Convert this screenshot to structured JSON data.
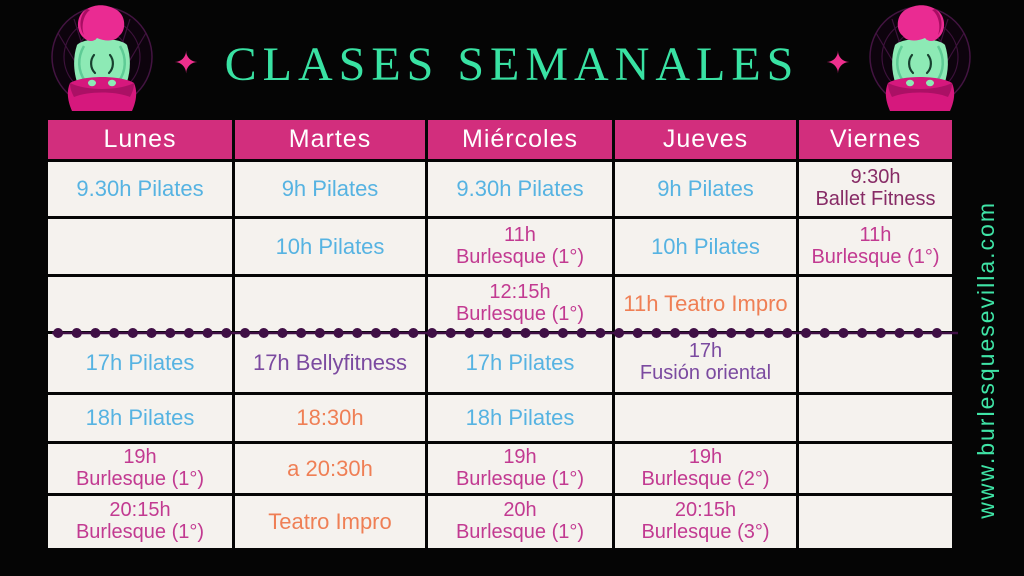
{
  "title": {
    "text": "CLASES SEMANALES",
    "sparkle": "✦"
  },
  "website": "www.burlesquesevilla.com",
  "colors": {
    "background": "#050505",
    "header_pink": "#d22e7d",
    "cell_bg": "#f5f2ee",
    "title_green": "#39e2a3",
    "sparkle_pink": "#ee2f8d",
    "dot_purple": "#3f0f45",
    "blue": "#56b3e2",
    "magenta": "#c23a91",
    "purple": "#7b4aa0",
    "plum": "#872b66",
    "orange": "#ef7f55"
  },
  "icons": {
    "sparkle_icon": "✦",
    "figure_left": "burlesque-dancer-back-view",
    "figure_right": "burlesque-dancer-back-view-mirrored"
  },
  "table": {
    "days": [
      "Lunes",
      "Martes",
      "Miércoles",
      "Jueves",
      "Viernes"
    ],
    "rows": [
      [
        {
          "text": "9.30h Pilates",
          "color": "blue"
        },
        {
          "text": "9h Pilates",
          "color": "blue"
        },
        {
          "text": "9.30h Pilates",
          "color": "blue"
        },
        {
          "text": "9h Pilates",
          "color": "blue"
        },
        {
          "text": "9:30h\nBallet Fitness",
          "color": "plum"
        }
      ],
      [
        null,
        {
          "text": "10h Pilates",
          "color": "blue"
        },
        {
          "text": "11h\nBurlesque (1°)",
          "color": "magenta"
        },
        {
          "text": "10h Pilates",
          "color": "blue"
        },
        {
          "text": "11h\nBurlesque (1°)",
          "color": "magenta"
        }
      ],
      [
        null,
        null,
        {
          "text": "12:15h\nBurlesque (1°)",
          "color": "magenta"
        },
        {
          "text": "11h Teatro Impro",
          "color": "orange"
        },
        null
      ],
      [
        {
          "text": "17h Pilates",
          "color": "blue"
        },
        {
          "text": "17h Bellyfitness",
          "color": "purple"
        },
        {
          "text": "17h Pilates",
          "color": "blue"
        },
        {
          "text": "17h\nFusión oriental",
          "color": "purple"
        },
        null
      ],
      [
        {
          "text": "18h Pilates",
          "color": "blue"
        },
        {
          "text": "18:30h",
          "color": "orange"
        },
        {
          "text": "18h Pilates",
          "color": "blue"
        },
        null,
        null
      ],
      [
        {
          "text": "19h\nBurlesque (1°)",
          "color": "magenta"
        },
        {
          "text": "a 20:30h",
          "color": "orange"
        },
        {
          "text": "19h\nBurlesque (1°)",
          "color": "magenta"
        },
        {
          "text": "19h\nBurlesque (2°)",
          "color": "magenta"
        },
        null
      ],
      [
        {
          "text": "20:15h\nBurlesque (1°)",
          "color": "magenta"
        },
        {
          "text": "Teatro Impro",
          "color": "orange"
        },
        {
          "text": "20h\nBurlesque (1°)",
          "color": "magenta"
        },
        {
          "text": "20:15h\nBurlesque (3°)",
          "color": "magenta"
        },
        null
      ]
    ]
  }
}
